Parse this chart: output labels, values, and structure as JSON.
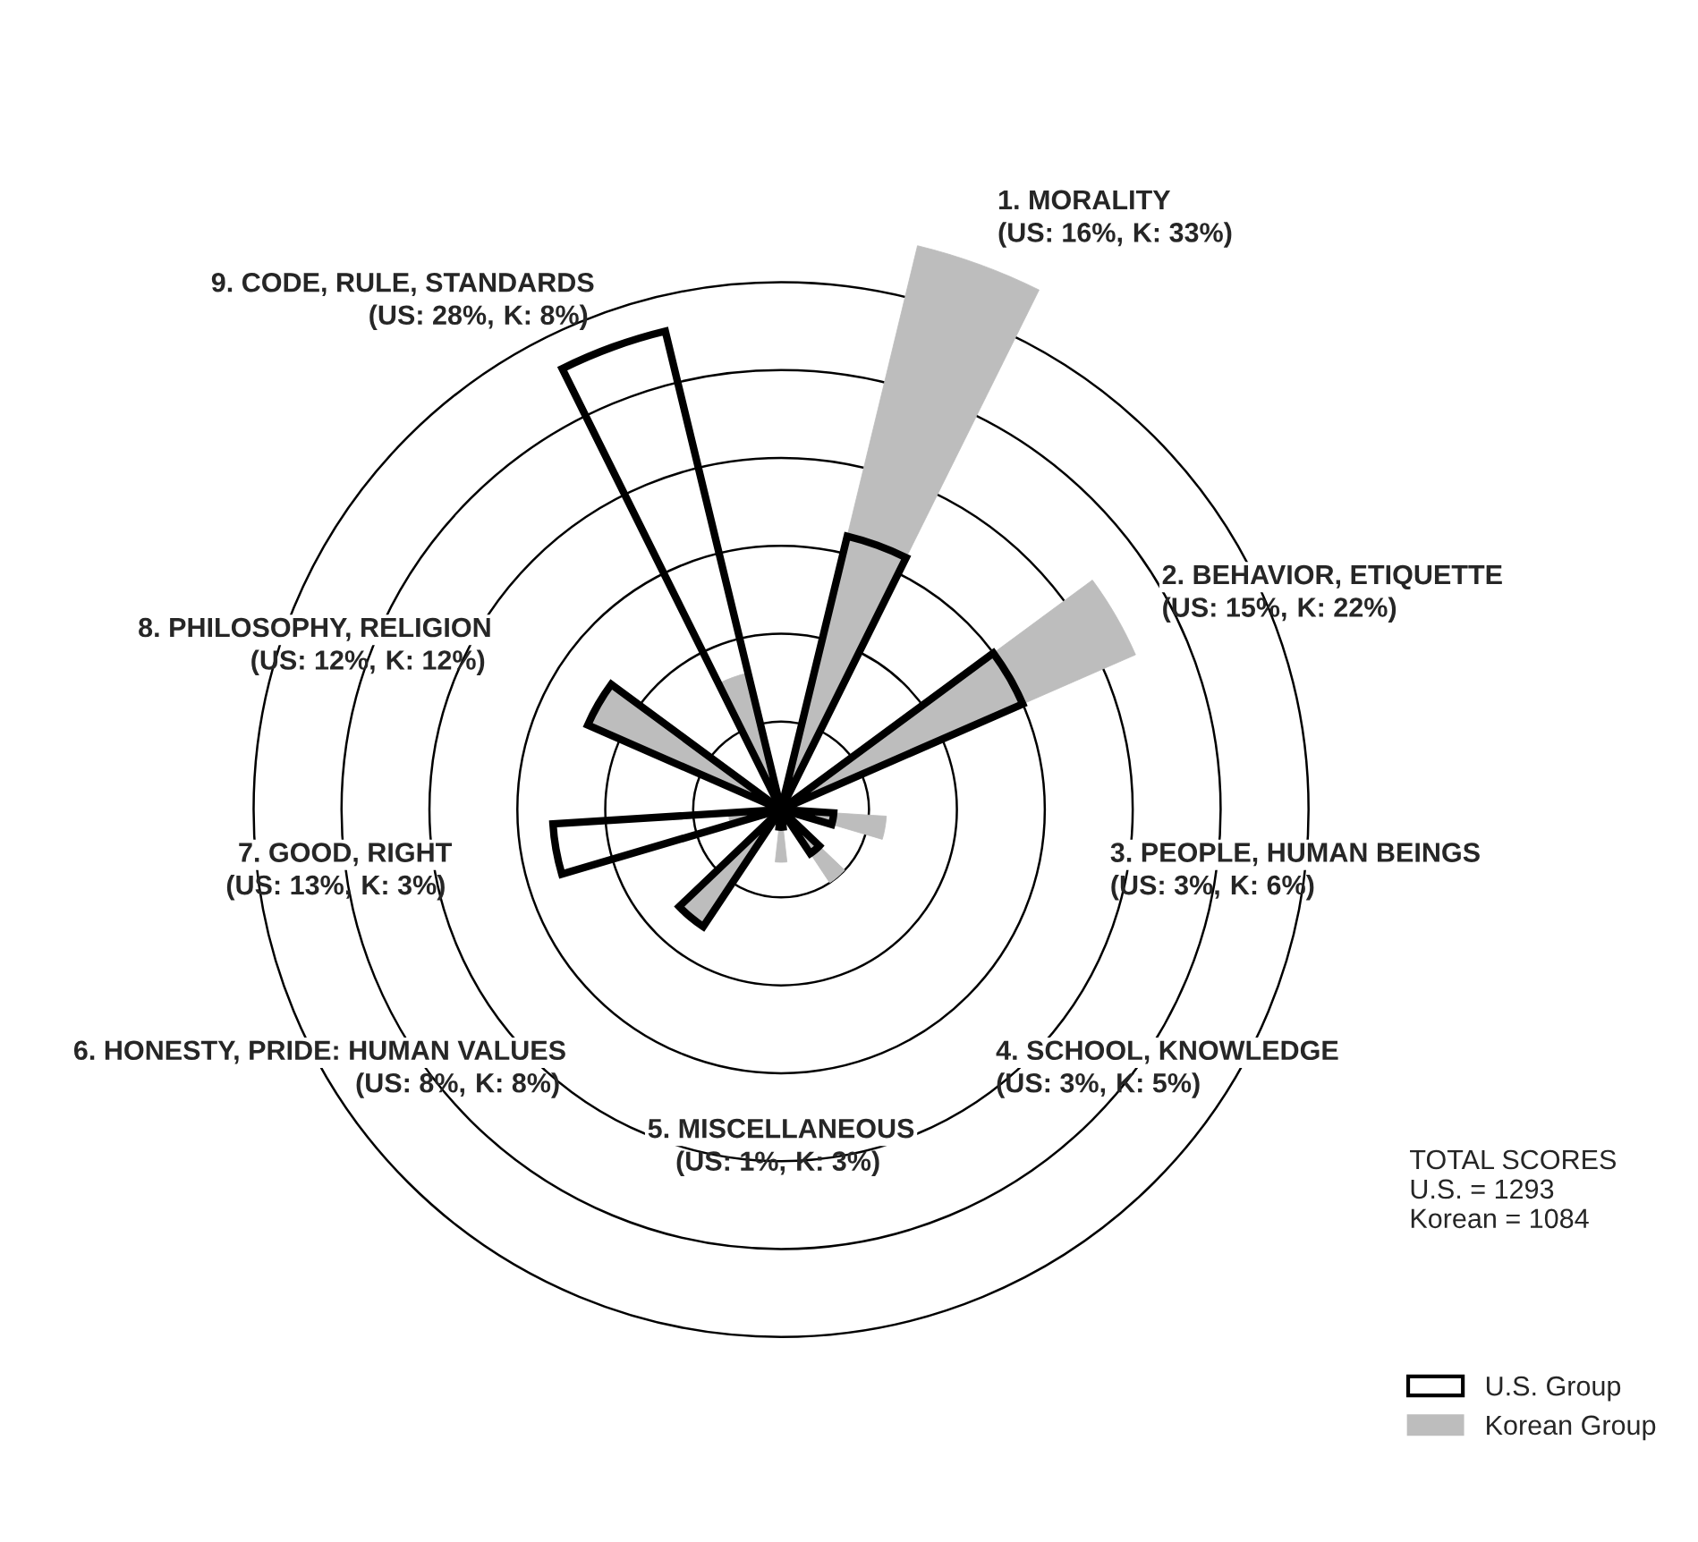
{
  "chart_data": {
    "type": "other",
    "categories": [
      "1. MORALITY",
      "2. BEHAVIOR, ETIQUETTE",
      "3. PEOPLE, HUMAN BEINGS",
      "4. SCHOOL, KNOWLEDGE",
      "5. MISCELLANEOUS",
      "6. HONESTY, PRIDE: HUMAN VALUES",
      "7. GOOD, RIGHT",
      "8. PHILOSOPHY, RELIGION",
      "9. CODE, RULE, STANDARDS"
    ],
    "series": [
      {
        "name": "U.S. Group",
        "color": "#ffffff",
        "values": [
          16,
          15,
          3,
          3,
          1,
          8,
          13,
          12,
          28
        ],
        "value_labels": [
          "(US: 16%,",
          "(US: 15%,",
          "(US: 3%,",
          "(US: 3%,",
          "(US: 1%,",
          "(US: 8%,",
          "(US: 13%,",
          "(US: 12%,",
          "(US: 28%,"
        ]
      },
      {
        "name": "Korean Group",
        "color": "#bdbdbd",
        "values": [
          33,
          22,
          6,
          5,
          3,
          8,
          3,
          12,
          8
        ],
        "value_labels": [
          "K: 33%)",
          "K: 22%)",
          "K: 6%)",
          "K: 5%)",
          "K: 3%)",
          "K: 8%)",
          "K: 3%)",
          "K: 12%)",
          "K: 8%)"
        ]
      }
    ],
    "legend": "bottom right",
    "annotations": [
      "TOTAL SCORES\nU.S. = 1293\nKorean = 1084"
    ]
  }
}
